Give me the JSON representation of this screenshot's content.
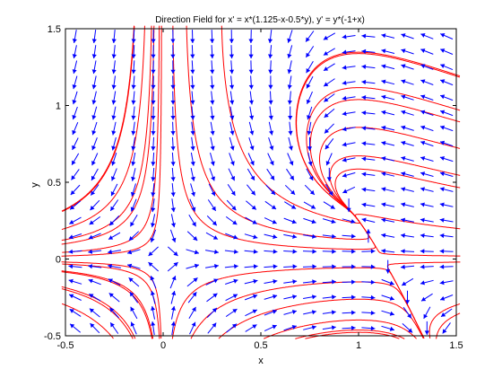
{
  "chart_data": {
    "type": "direction-field",
    "title": "Direction Field for x' = x*(1.125-x-0.5*y), y' = y*(-1+x)",
    "xlabel": "x",
    "ylabel": "y",
    "xlim": [
      -0.5,
      1.5
    ],
    "ylim": [
      -0.5,
      1.5
    ],
    "x_ticks": [
      "-0.5",
      "0",
      "0.5",
      "1",
      "1.5"
    ],
    "y_ticks": [
      "-0.5",
      "0",
      "0.5",
      "1",
      "1.5"
    ],
    "grid": false,
    "field": {
      "dx": "x*(1.125-x-0.5*y)",
      "dy": "y*(-1+x)",
      "x_start": -0.45,
      "x_step": 0.1,
      "nx": 20,
      "y_start": -0.45,
      "y_step": 0.1,
      "ny": 20,
      "arrow_color": "#0000ff"
    },
    "trajectory_color": "#ff0000",
    "trajectories": [
      [
        -0.5,
        0.32
      ],
      [
        -0.5,
        0.2
      ],
      [
        -0.5,
        0.1
      ],
      [
        -0.5,
        0.02
      ],
      [
        -0.5,
        -0.02
      ],
      [
        -0.5,
        -0.08
      ],
      [
        -0.5,
        -0.2
      ],
      [
        -0.5,
        -0.3
      ],
      [
        -0.02,
        1.5
      ],
      [
        -0.06,
        1.5
      ],
      [
        -0.15,
        1.5
      ],
      [
        0.05,
        1.5
      ],
      [
        0.12,
        1.5
      ],
      [
        0.3,
        1.5
      ],
      [
        -0.02,
        -0.5
      ],
      [
        -0.06,
        -0.5
      ],
      [
        -0.15,
        -0.5
      ],
      [
        0.05,
        -0.5
      ],
      [
        0.15,
        -0.5
      ],
      [
        0.3,
        -0.5
      ],
      [
        1.5,
        1.2
      ],
      [
        1.5,
        0.9
      ],
      [
        1.5,
        0.55
      ],
      [
        1.5,
        0.2
      ],
      [
        1.5,
        0.02
      ],
      [
        1.5,
        -0.02
      ],
      [
        1.5,
        -0.3
      ],
      [
        0.9,
        0.55
      ],
      [
        0.85,
        0.8
      ],
      [
        0.9,
        1.1
      ],
      [
        0.85,
        1.3
      ],
      [
        1.2,
        -0.5
      ],
      [
        1.4,
        -0.5
      ],
      [
        0.55,
        -0.5
      ],
      [
        0.8,
        -0.5
      ]
    ]
  }
}
